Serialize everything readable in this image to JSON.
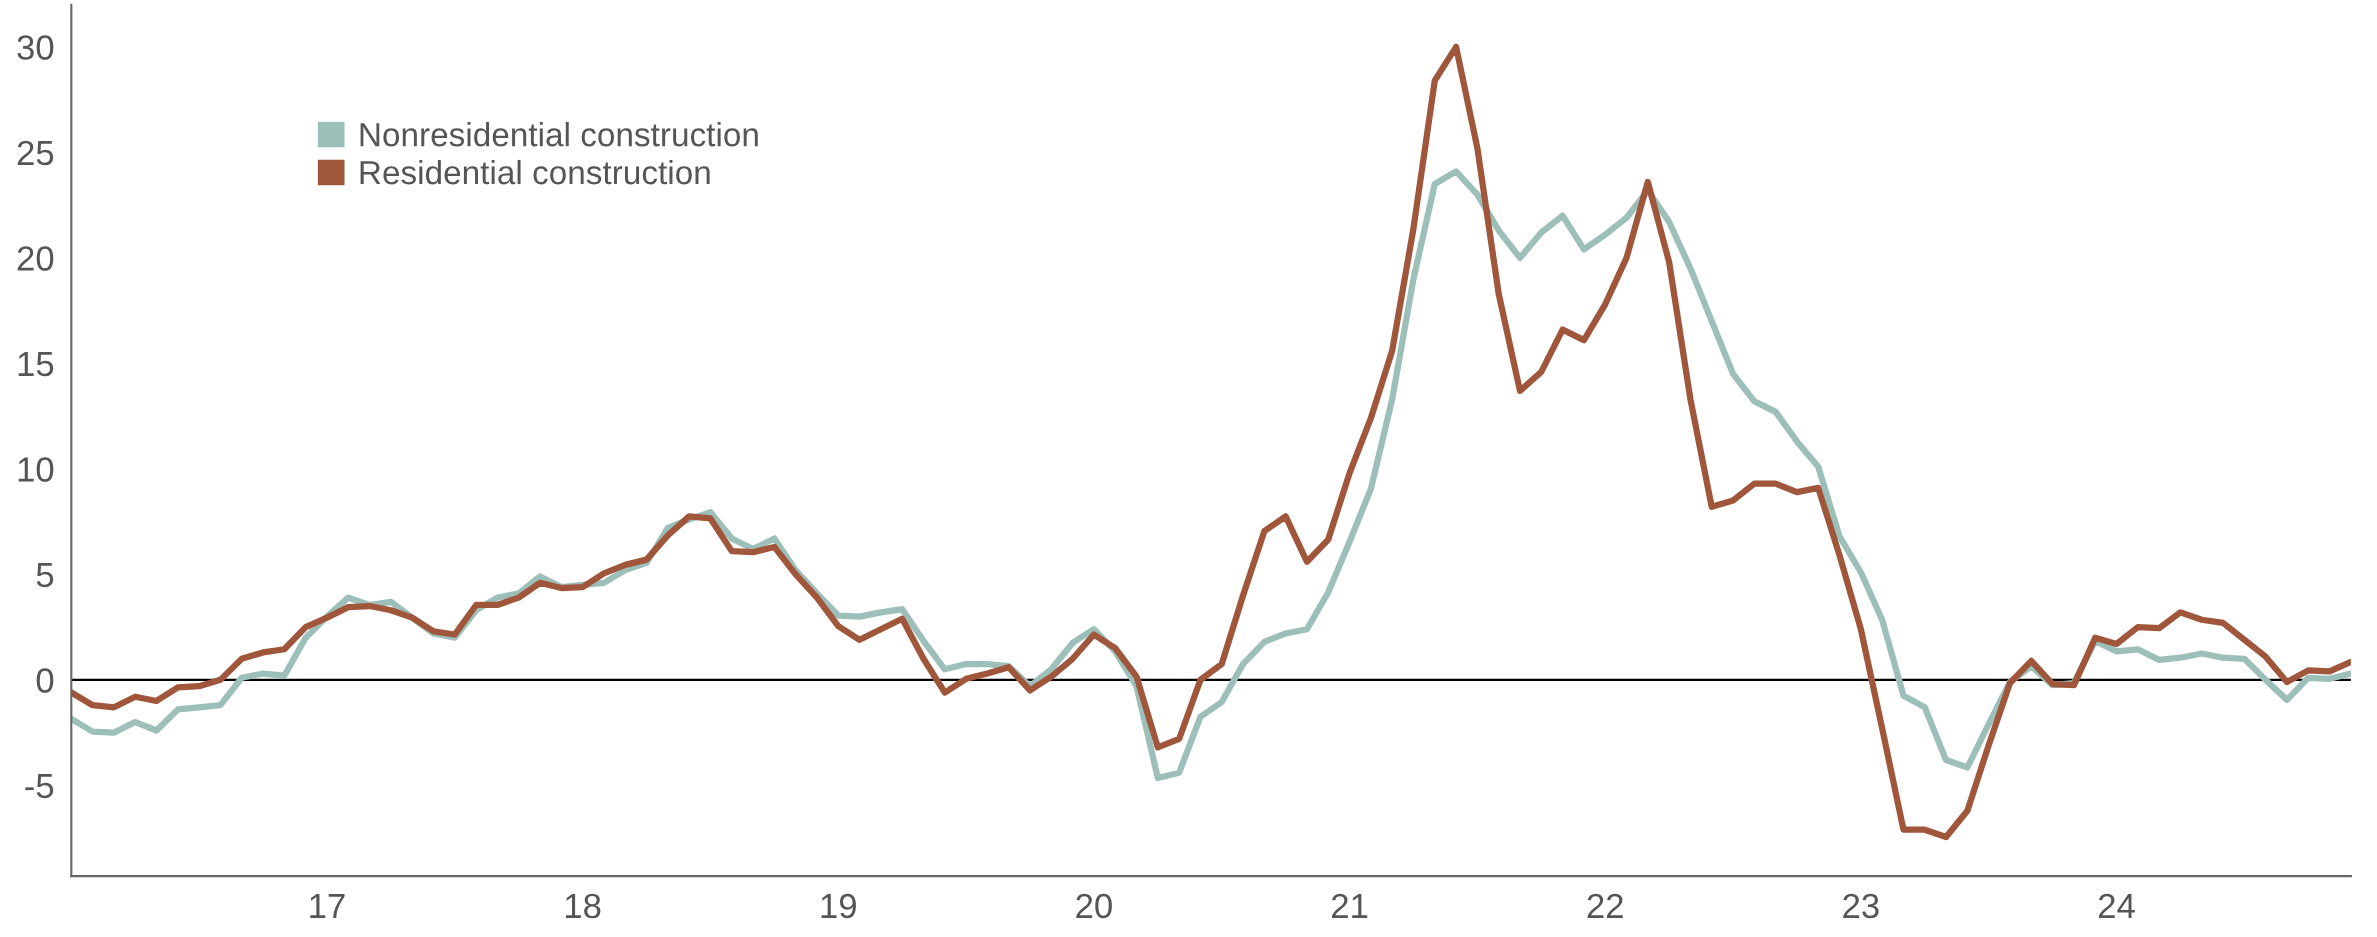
{
  "chart_data": {
    "type": "line",
    "x": [
      "2016-01",
      "2016-02",
      "2016-03",
      "2016-04",
      "2016-05",
      "2016-06",
      "2016-07",
      "2016-08",
      "2016-09",
      "2016-10",
      "2016-11",
      "2016-12",
      "2017-01",
      "2017-02",
      "2017-03",
      "2017-04",
      "2017-05",
      "2017-06",
      "2017-07",
      "2017-08",
      "2017-09",
      "2017-10",
      "2017-11",
      "2017-12",
      "2018-01",
      "2018-02",
      "2018-03",
      "2018-04",
      "2018-05",
      "2018-06",
      "2018-07",
      "2018-08",
      "2018-09",
      "2018-10",
      "2018-11",
      "2018-12",
      "2019-01",
      "2019-02",
      "2019-03",
      "2019-04",
      "2019-05",
      "2019-06",
      "2019-07",
      "2019-08",
      "2019-09",
      "2019-10",
      "2019-11",
      "2019-12",
      "2020-01",
      "2020-02",
      "2020-03",
      "2020-04",
      "2020-05",
      "2020-06",
      "2020-07",
      "2020-08",
      "2020-09",
      "2020-10",
      "2020-11",
      "2020-12",
      "2021-01",
      "2021-02",
      "2021-03",
      "2021-04",
      "2021-05",
      "2021-06",
      "2021-07",
      "2021-08",
      "2021-09",
      "2021-10",
      "2021-11",
      "2021-12",
      "2022-01",
      "2022-02",
      "2022-03",
      "2022-04",
      "2022-05",
      "2022-06",
      "2022-07",
      "2022-08",
      "2022-09",
      "2022-10",
      "2022-11",
      "2022-12",
      "2023-01",
      "2023-02",
      "2023-03",
      "2023-04",
      "2023-05",
      "2023-06",
      "2023-07",
      "2023-08",
      "2023-09",
      "2023-10",
      "2023-11",
      "2023-12",
      "2024-01",
      "2024-02",
      "2024-03",
      "2024-04",
      "2024-05",
      "2024-06",
      "2024-07",
      "2024-08",
      "2024-09",
      "2024-10",
      "2024-11",
      "2024-12"
    ],
    "series": [
      {
        "name": "Nonresidential construction",
        "color": "#9dbfba",
        "values": [
          -1.85,
          -2.45,
          -2.5,
          -2.0,
          -2.4,
          -1.4,
          -1.3,
          -1.2,
          0.1,
          0.3,
          0.2,
          2.0,
          3.0,
          3.9,
          3.55,
          3.7,
          2.95,
          2.2,
          2.0,
          3.3,
          3.9,
          4.1,
          4.9,
          4.4,
          4.5,
          4.6,
          5.2,
          5.55,
          7.2,
          7.6,
          7.95,
          6.7,
          6.2,
          6.7,
          5.2,
          4.1,
          3.05,
          3.0,
          3.2,
          3.35,
          1.85,
          0.5,
          0.75,
          0.75,
          0.65,
          -0.3,
          0.5,
          1.75,
          2.4,
          1.35,
          -0.3,
          -4.65,
          -4.4,
          -1.75,
          -1.05,
          0.75,
          1.8,
          2.2,
          2.4,
          4.15,
          6.55,
          9.05,
          13.3,
          19.0,
          23.5,
          24.1,
          23.0,
          21.3,
          20.0,
          21.2,
          22.0,
          20.4,
          21.1,
          21.9,
          23.2,
          21.7,
          19.5,
          17.0,
          14.5,
          13.2,
          12.7,
          11.3,
          10.1,
          6.8,
          5.1,
          2.85,
          -0.75,
          -1.3,
          -3.8,
          -4.15,
          -2.1,
          -0.1,
          0.65,
          -0.25,
          -0.15,
          1.85,
          1.35,
          1.45,
          0.95,
          1.05,
          1.25,
          1.05,
          1.0,
          0.0,
          -0.95,
          0.1,
          0.05,
          0.3
        ]
      },
      {
        "name": "Residential construction",
        "color": "#a0563a",
        "values": [
          -0.6,
          -1.2,
          -1.3,
          -0.8,
          -1.0,
          -0.35,
          -0.3,
          0.0,
          1.0,
          1.3,
          1.45,
          2.5,
          2.95,
          3.45,
          3.5,
          3.3,
          2.95,
          2.3,
          2.15,
          3.55,
          3.55,
          3.9,
          4.6,
          4.35,
          4.4,
          5.05,
          5.45,
          5.7,
          6.85,
          7.75,
          7.65,
          6.1,
          6.05,
          6.3,
          5.0,
          3.9,
          2.55,
          1.9,
          2.4,
          2.9,
          1.0,
          -0.6,
          0.05,
          0.3,
          0.6,
          -0.5,
          0.15,
          1.0,
          2.15,
          1.5,
          0.15,
          -3.2,
          -2.8,
          0.0,
          0.75,
          4.0,
          7.05,
          7.75,
          5.6,
          6.65,
          9.8,
          12.4,
          15.6,
          21.4,
          28.4,
          30.0,
          25.2,
          18.3,
          13.7,
          14.6,
          16.6,
          16.1,
          17.8,
          20.0,
          23.6,
          19.8,
          13.3,
          8.2,
          8.5,
          9.3,
          9.3,
          8.9,
          9.1,
          5.9,
          2.4,
          -2.3,
          -7.1,
          -7.1,
          -7.45,
          -6.2,
          -3.1,
          -0.15,
          0.9,
          -0.2,
          -0.25,
          2.0,
          1.7,
          2.5,
          2.45,
          3.2,
          2.85,
          2.7,
          1.9,
          1.1,
          -0.1,
          0.45,
          0.4,
          0.85
        ]
      }
    ],
    "xlim": [
      "2016-01",
      "2024-12"
    ],
    "xticks": [
      {
        "value": "2017-01",
        "label": "17"
      },
      {
        "value": "2018-01",
        "label": "18"
      },
      {
        "value": "2019-01",
        "label": "19"
      },
      {
        "value": "2020-01",
        "label": "20"
      },
      {
        "value": "2021-01",
        "label": "21"
      },
      {
        "value": "2022-01",
        "label": "22"
      },
      {
        "value": "2023-01",
        "label": "23"
      },
      {
        "value": "2024-01",
        "label": "24"
      }
    ],
    "ylim": [
      -9.3,
      32
    ],
    "yticks": [
      -5,
      0,
      5,
      10,
      15,
      20,
      25,
      30
    ],
    "ref_lines": [
      {
        "axis": "y",
        "value": 0,
        "color": "#000000",
        "line_style": "solid"
      }
    ],
    "grid": false,
    "legend": "top left",
    "marker": "none",
    "line_style": "solid"
  }
}
